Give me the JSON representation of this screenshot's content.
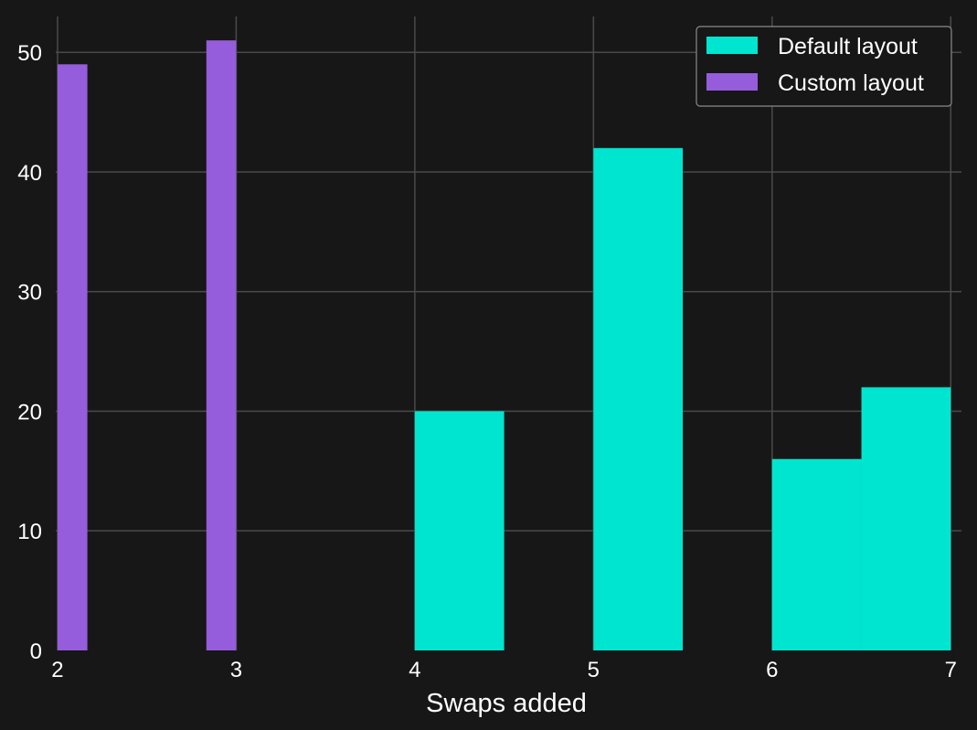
{
  "chart_data": {
    "type": "bar",
    "xlabel": "Swaps added",
    "ylabel": "",
    "xlim": [
      1.99,
      7.06
    ],
    "ylim": [
      0,
      53
    ],
    "x_ticks": [
      "2",
      "3",
      "4",
      "5",
      "6",
      "7"
    ],
    "y_ticks": [
      "0",
      "10",
      "20",
      "30",
      "40",
      "50"
    ],
    "grid": true,
    "legend_position": "top-right",
    "series": [
      {
        "name": "Default layout",
        "color": "#00e5cf",
        "bars": [
          {
            "x0": 4.0,
            "x1": 4.5,
            "value": 20
          },
          {
            "x0": 5.0,
            "x1": 5.5,
            "value": 42
          },
          {
            "x0": 6.0,
            "x1": 6.5,
            "value": 16
          },
          {
            "x0": 6.5,
            "x1": 7.0,
            "value": 22
          }
        ]
      },
      {
        "name": "Custom layout",
        "color": "#955ddb",
        "bars": [
          {
            "x0": 2.0,
            "x1": 2.167,
            "value": 49
          },
          {
            "x0": 2.833,
            "x1": 3.0,
            "value": 51
          }
        ]
      }
    ]
  }
}
